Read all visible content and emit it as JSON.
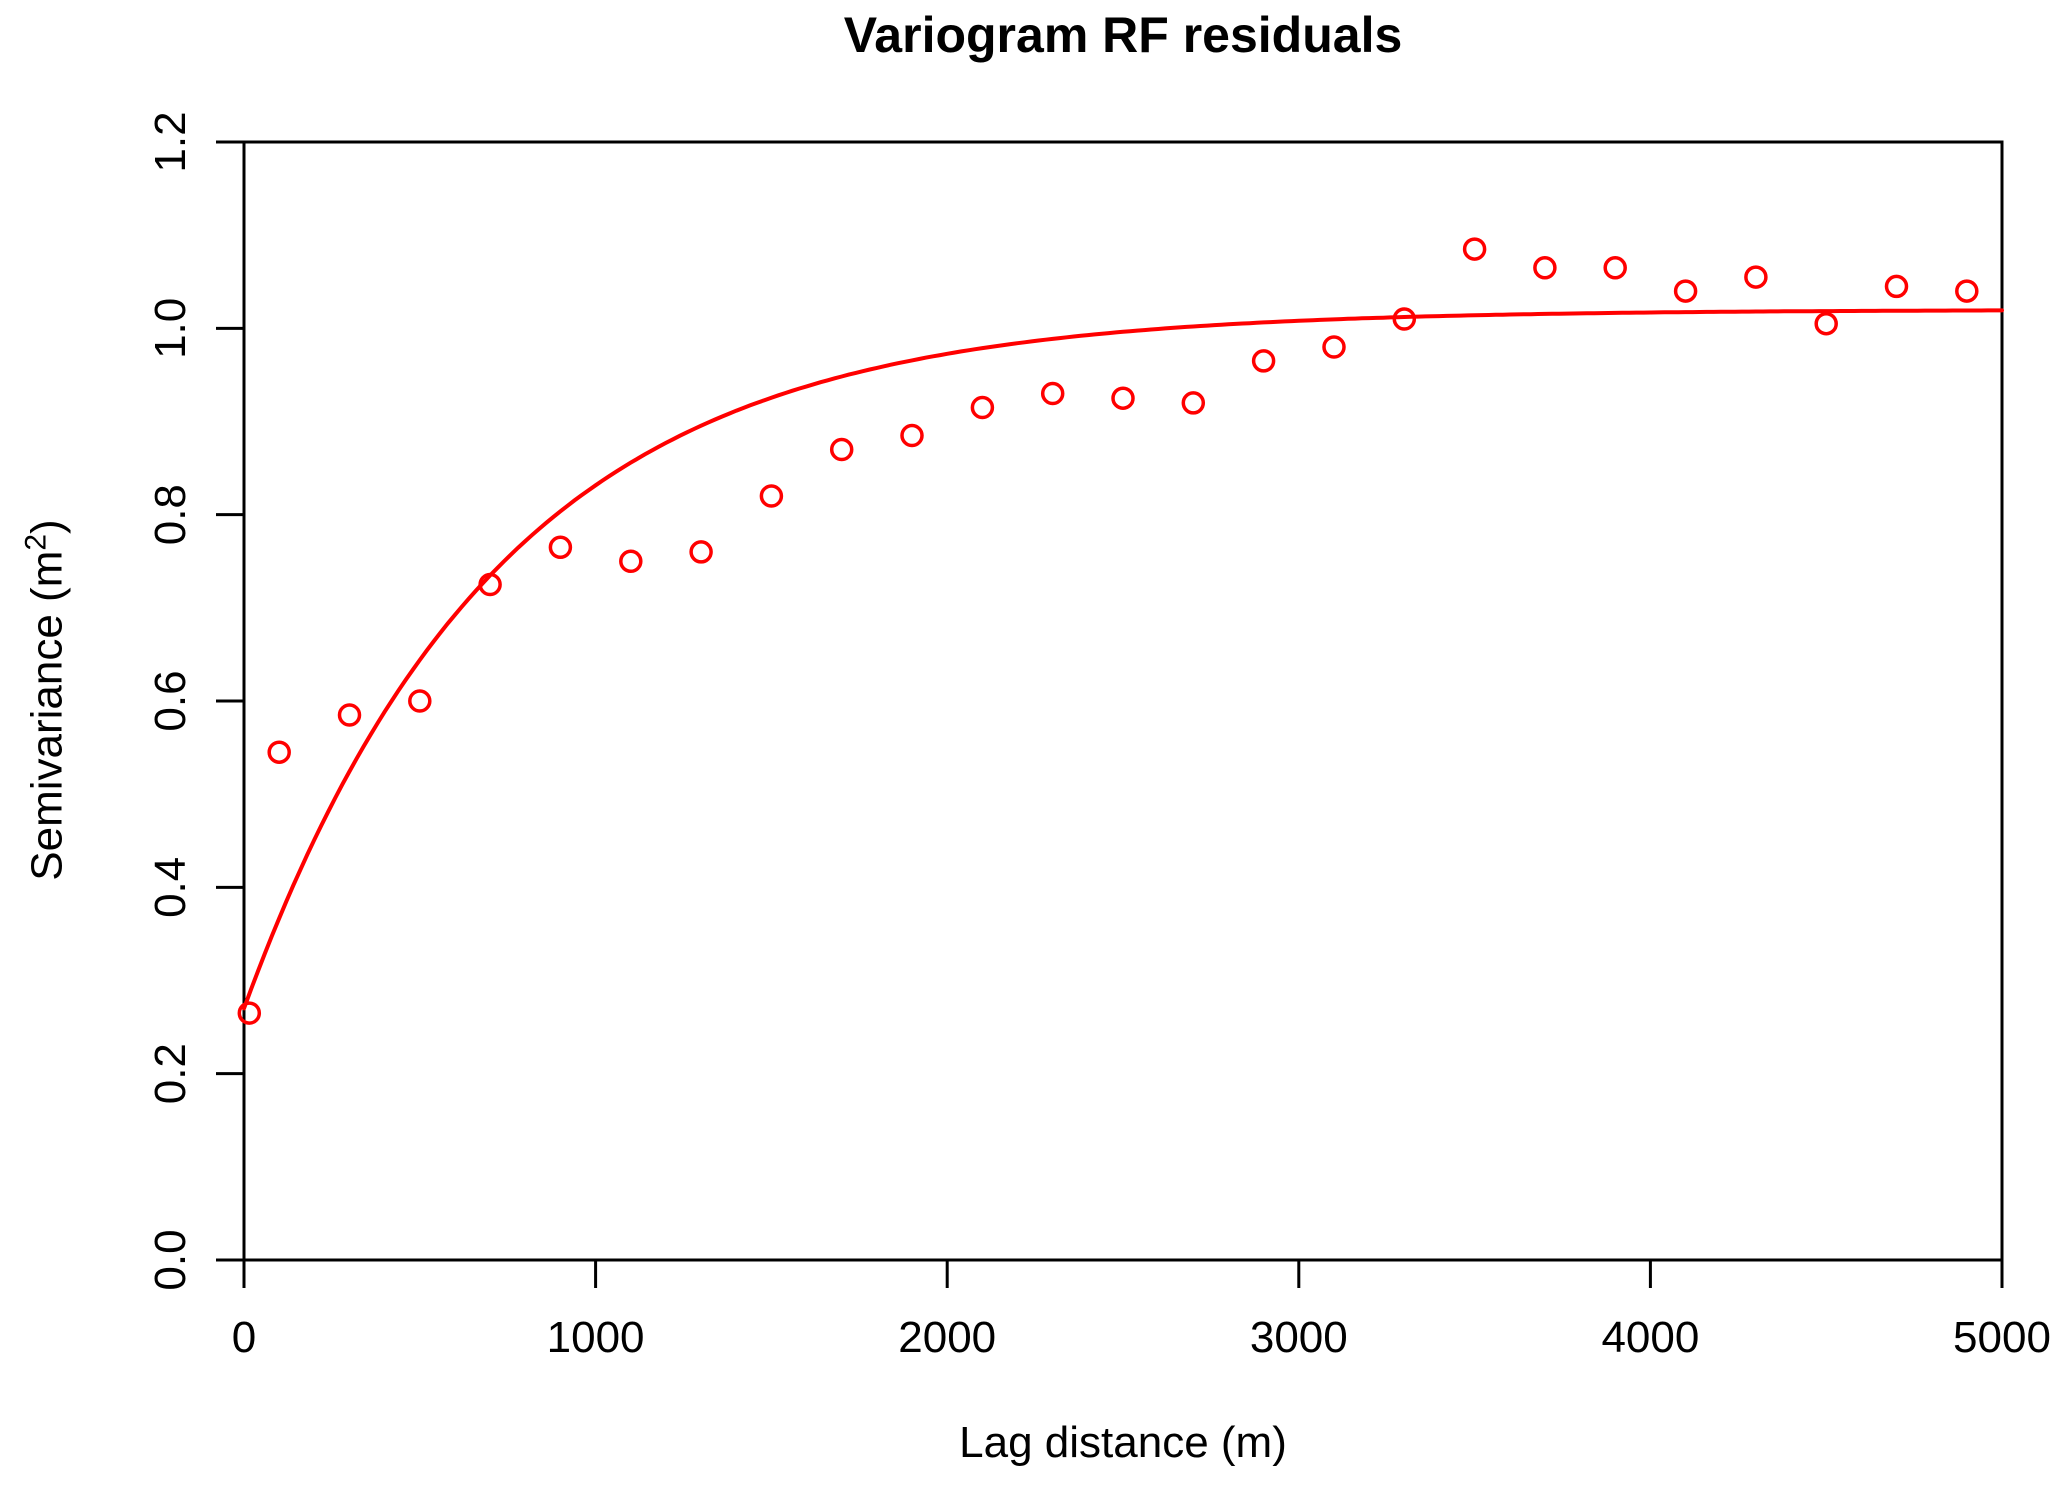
{
  "title": "Variogram RF residuals",
  "labels": {
    "xlabel": "Lag distance (m)",
    "ylabel_main": "Semivariance (m",
    "ylabel_sup": "2",
    "ylabel_close": ")"
  },
  "colors": {
    "background": "#FFFFFF",
    "axis": "#000000",
    "text": "#000000",
    "series": "#FF0000"
  },
  "chart_data": {
    "type": "scatter",
    "title": "Variogram RF residuals",
    "xlabel": "Lag distance (m)",
    "ylabel": "Semivariance (m²)",
    "xlim": [
      0,
      5000
    ],
    "ylim": [
      0.0,
      1.2
    ],
    "x_ticks": [
      "0",
      "1000",
      "2000",
      "3000",
      "4000",
      "5000"
    ],
    "y_ticks": [
      "0.0",
      "0.2",
      "0.4",
      "0.6",
      "0.8",
      "1.0",
      "1.2"
    ],
    "grid": false,
    "legend_position": "none",
    "series": [
      {
        "name": "empirical-semivariance",
        "kind": "points",
        "marker": "open-circle",
        "color": "#FF0000",
        "x": [
          15,
          100,
          300,
          500,
          700,
          900,
          1100,
          1300,
          1500,
          1700,
          1900,
          2100,
          2300,
          2500,
          2700,
          2900,
          3100,
          3300,
          3500,
          3700,
          3900,
          4100,
          4300,
          4500,
          4700,
          4900
        ],
        "y": [
          0.265,
          0.545,
          0.585,
          0.6,
          0.725,
          0.765,
          0.75,
          0.76,
          0.82,
          0.87,
          0.885,
          0.915,
          0.93,
          0.925,
          0.92,
          0.965,
          0.98,
          1.01,
          1.085,
          1.065,
          1.065,
          1.04,
          1.055,
          1.005,
          1.045,
          1.04
        ]
      },
      {
        "name": "fitted-variogram-model",
        "kind": "line",
        "color": "#FF0000",
        "model": {
          "form": "exponential",
          "nugget": 0.27,
          "sill": 1.02,
          "range_param": 724,
          "x_start": 0,
          "x_end": 5000
        }
      }
    ]
  }
}
